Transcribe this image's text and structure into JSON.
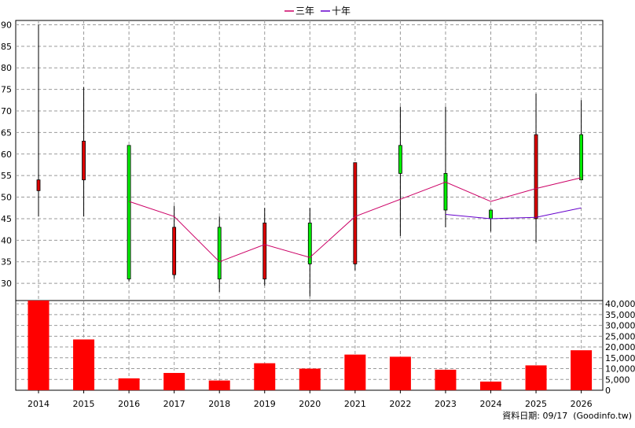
{
  "chart_data": [
    {
      "type": "candlestick",
      "legend": [
        {
          "name": "三年",
          "color": "#cc0066"
        },
        {
          "name": "十年",
          "color": "#6600cc"
        }
      ],
      "legend_position": "top-center",
      "categories": [
        "2014",
        "2015",
        "2016",
        "2017",
        "2018",
        "2019",
        "2020",
        "2021",
        "2022",
        "2023",
        "2024",
        "2025",
        "2026"
      ],
      "ylim": [
        26,
        91
      ],
      "yticks": [
        30,
        35,
        40,
        45,
        50,
        55,
        60,
        65,
        70,
        75,
        80,
        85,
        90
      ],
      "grid": true,
      "up_color": "#00ee00",
      "down_color": "#dd0000",
      "candles": [
        {
          "open": 51.5,
          "close": 54.0,
          "high": 90.0,
          "low": 45.5,
          "color": "red"
        },
        {
          "open": 54.0,
          "close": 63.0,
          "high": 75.5,
          "low": 45.5,
          "color": "red"
        },
        {
          "open": 62.0,
          "close": 31.0,
          "high": 62.0,
          "low": 30.5,
          "color": "green"
        },
        {
          "open": 32.0,
          "close": 43.0,
          "high": 48.0,
          "low": 31.0,
          "color": "red"
        },
        {
          "open": 43.0,
          "close": 31.0,
          "high": 45.5,
          "low": 28.0,
          "color": "green"
        },
        {
          "open": 31.0,
          "close": 44.0,
          "high": 47.5,
          "low": 29.5,
          "color": "red"
        },
        {
          "open": 44.0,
          "close": 34.5,
          "high": 47.5,
          "low": 27.0,
          "color": "green"
        },
        {
          "open": 34.5,
          "close": 58.0,
          "high": 58.0,
          "low": 33.0,
          "color": "red"
        },
        {
          "open": 62.0,
          "close": 55.5,
          "high": 71.0,
          "low": 41.0,
          "color": "green"
        },
        {
          "open": 55.5,
          "close": 47.0,
          "high": 71.0,
          "low": 43.0,
          "color": "green"
        },
        {
          "open": 47.0,
          "close": 45.0,
          "high": 47.0,
          "low": 42.0,
          "color": "green"
        },
        {
          "open": 45.0,
          "close": 64.5,
          "high": 74.0,
          "low": 39.5,
          "color": "red"
        },
        {
          "open": 64.5,
          "close": 54.0,
          "high": 72.5,
          "low": 54.0,
          "color": "green"
        }
      ],
      "series": [
        {
          "name": "三年",
          "color": "#cc0066",
          "values": [
            null,
            null,
            49.0,
            45.5,
            35.0,
            39.0,
            36.0,
            45.5,
            49.5,
            53.5,
            49.0,
            52.0,
            54.5
          ]
        },
        {
          "name": "十年",
          "color": "#6600cc",
          "values": [
            null,
            null,
            null,
            null,
            null,
            null,
            null,
            null,
            null,
            46.0,
            45.0,
            45.3,
            47.5
          ]
        }
      ]
    },
    {
      "type": "bar",
      "categories": [
        "2014",
        "2015",
        "2016",
        "2017",
        "2018",
        "2019",
        "2020",
        "2021",
        "2022",
        "2023",
        "2024",
        "2025",
        "2026"
      ],
      "values": [
        41500,
        23500,
        5500,
        8000,
        4500,
        12500,
        10000,
        16500,
        15500,
        9500,
        4000,
        11500,
        18500
      ],
      "ylim": [
        0,
        40000
      ],
      "yticks": [
        0,
        5000,
        10000,
        15000,
        20000,
        25000,
        30000,
        35000,
        40000
      ],
      "ytick_labels": [
        "0",
        "5,000",
        "10,000",
        "15,000",
        "20,000",
        "25,000",
        "30,000",
        "35,000",
        "40,000"
      ],
      "bar_color": "#ff0000",
      "grid": true
    }
  ],
  "footer": "資料日期: 09/17  (Goodinfo.tw)"
}
